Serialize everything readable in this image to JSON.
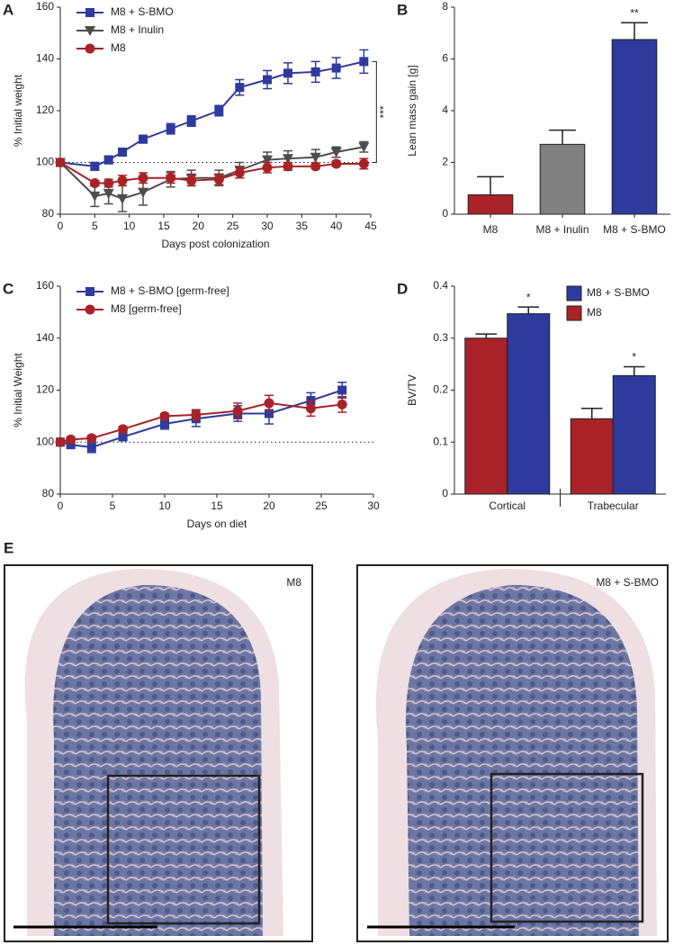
{
  "chart_data": [
    {
      "type": "line",
      "panel": "A",
      "xlabel": "Days post colonization",
      "ylabel": "% Initial weight",
      "x": [
        0,
        5,
        7,
        9,
        12,
        16,
        19,
        23,
        26,
        30,
        33,
        37,
        40,
        44
      ],
      "xlim": [
        0,
        45
      ],
      "xticks": [
        0,
        5,
        10,
        15,
        20,
        25,
        30,
        35,
        40,
        45
      ],
      "ylim": [
        80,
        160
      ],
      "yticks": [
        80,
        100,
        120,
        140,
        160
      ],
      "reference_line": 100,
      "annotation": "***",
      "series": [
        {
          "name": "M8 + S-BMO",
          "color": "#2e3a9c",
          "marker": "square",
          "values": [
            100,
            98.5,
            101,
            104,
            109,
            113,
            116,
            120,
            129,
            132,
            134.5,
            135,
            136.5,
            139
          ],
          "errors": [
            0,
            1.5,
            1.5,
            1.5,
            1.5,
            2,
            2,
            2,
            3,
            3.5,
            4,
            4,
            4,
            4.5
          ]
        },
        {
          "name": "M8 + Inulin",
          "color": "#4d4d4d",
          "marker": "triangle",
          "values": [
            100,
            87,
            88,
            86,
            88.5,
            93.5,
            94,
            94,
            97,
            101,
            101.5,
            102,
            104,
            106
          ],
          "errors": [
            0,
            4,
            4,
            5,
            5,
            3,
            3,
            3,
            3,
            3,
            3,
            3,
            2,
            2
          ]
        },
        {
          "name": "M8",
          "color": "#a82228",
          "marker": "circle",
          "values": [
            100,
            92,
            92,
            93,
            94,
            94,
            93,
            93.5,
            96,
            98,
            98.5,
            98.5,
            99.5,
            99.5
          ],
          "errors": [
            0,
            1,
            1.5,
            2,
            2,
            2,
            2,
            2,
            2,
            2,
            1.5,
            1,
            1,
            2
          ]
        }
      ]
    },
    {
      "type": "bar",
      "panel": "B",
      "ylabel": "Lean mass gain [g]",
      "categories": [
        "M8",
        "M8 + Inulin",
        "M8 + S-BMO"
      ],
      "values": [
        0.75,
        2.7,
        6.75
      ],
      "errors": [
        0.7,
        0.55,
        0.65
      ],
      "colors": [
        "#a82228",
        "#808080",
        "#2e3a9c"
      ],
      "significance": [
        null,
        null,
        "**"
      ],
      "ylim": [
        0,
        8
      ],
      "yticks": [
        0,
        2,
        4,
        6,
        8
      ]
    },
    {
      "type": "line",
      "panel": "C",
      "xlabel": "Days on diet",
      "ylabel": "% Initial Weight",
      "x": [
        0,
        1,
        3,
        6,
        10,
        13,
        17,
        20,
        24,
        27
      ],
      "xlim": [
        0,
        30
      ],
      "xticks": [
        0,
        5,
        10,
        15,
        20,
        25,
        30
      ],
      "ylim": [
        80,
        160
      ],
      "yticks": [
        80,
        100,
        120,
        140,
        160
      ],
      "reference_line": 100,
      "series": [
        {
          "name": "M8 + S-BMO [germ-free]",
          "color": "#2e3a9c",
          "marker": "square",
          "values": [
            100,
            99,
            98,
            102,
            107,
            109,
            111,
            111,
            116,
            120
          ],
          "errors": [
            1,
            1,
            2,
            1,
            2,
            3,
            3,
            4,
            3,
            3
          ]
        },
        {
          "name": "M8 [germ-free]",
          "color": "#a82228",
          "marker": "circle",
          "values": [
            100,
            101,
            101.5,
            105,
            110,
            110.5,
            112,
            115,
            113,
            114.5
          ],
          "errors": [
            1,
            1,
            1,
            1,
            1,
            2,
            3,
            3,
            3,
            3
          ]
        }
      ]
    },
    {
      "type": "grouped_bar",
      "panel": "D",
      "ylabel": "BV/TV",
      "categories": [
        "Cortical",
        "Trabecular"
      ],
      "ylim": [
        0,
        0.4
      ],
      "yticks": [
        0,
        0.1,
        0.2,
        0.3,
        0.4
      ],
      "series": [
        {
          "name": "M8",
          "color": "#a82228",
          "values": [
            0.3,
            0.145
          ],
          "errors": [
            0.008,
            0.02
          ]
        },
        {
          "name": "M8 + S-BMO",
          "color": "#2e3a9c",
          "values": [
            0.347,
            0.228
          ],
          "errors": [
            0.013,
            0.017
          ],
          "significance": [
            "*",
            "*"
          ]
        }
      ]
    }
  ],
  "panel_e": {
    "label": "E",
    "images": [
      {
        "label": "M8"
      },
      {
        "label": "M8 + S-BMO"
      }
    ]
  }
}
